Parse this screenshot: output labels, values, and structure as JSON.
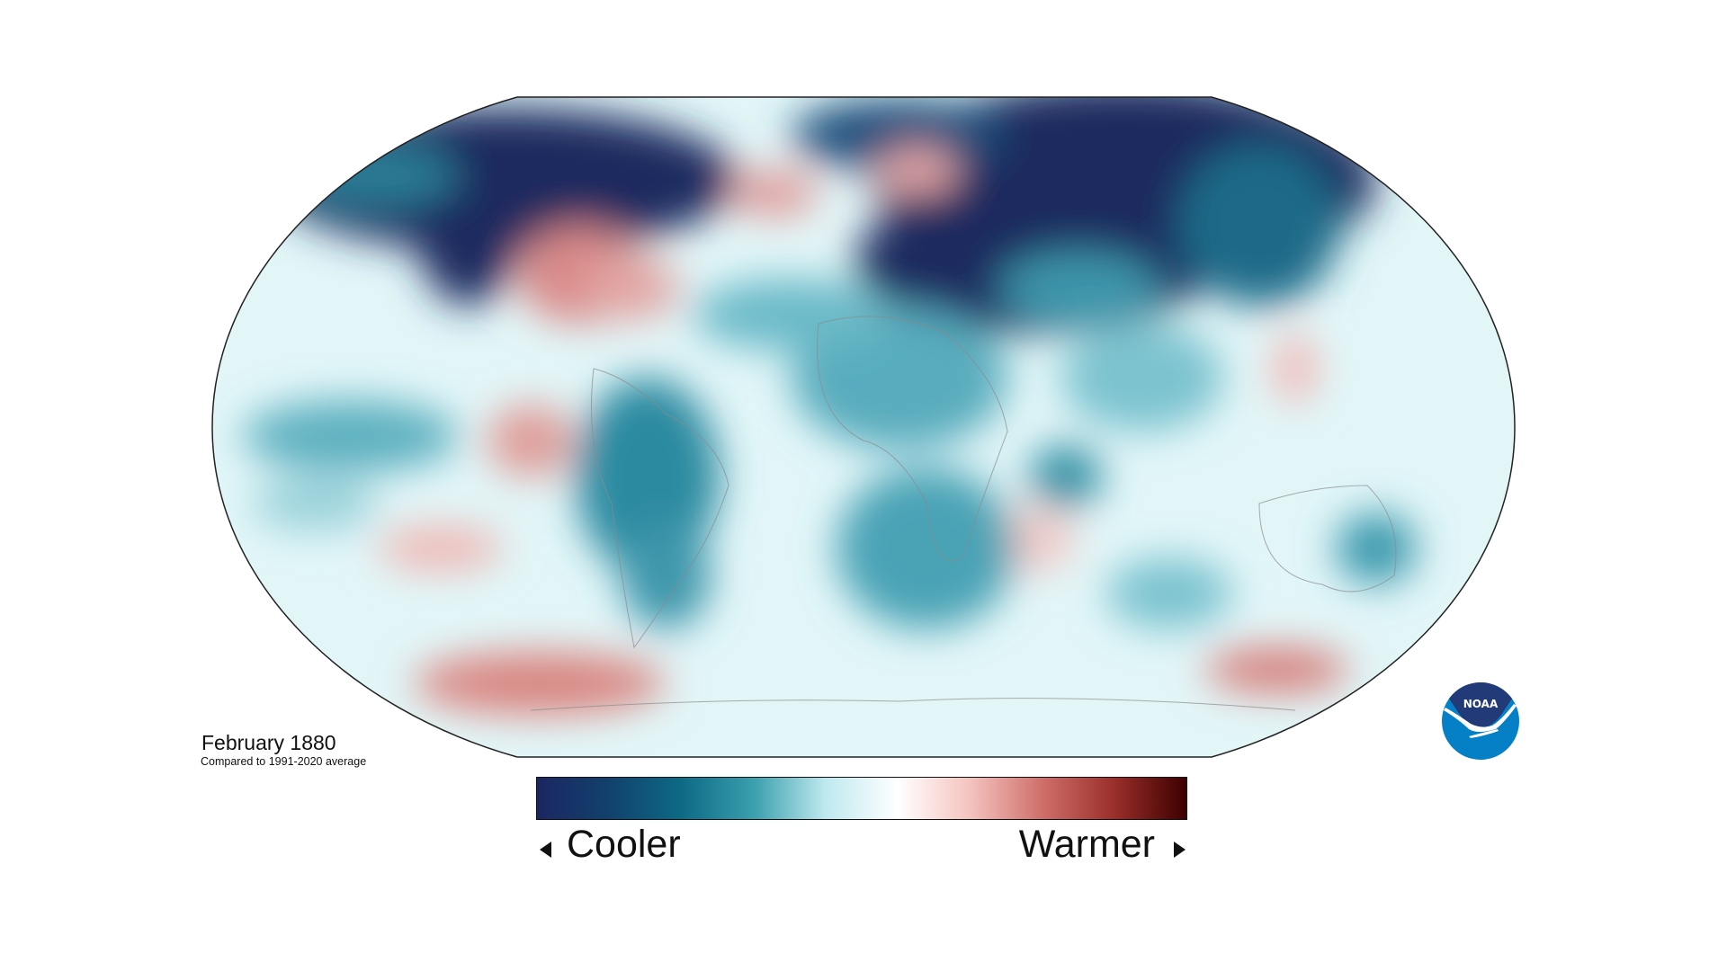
{
  "map": {
    "title": "February 1880",
    "subtitle": "Compared to 1991-2020 average",
    "projection": "Robinson",
    "colors": {
      "coolest": "#1b2a5e",
      "cool": "#1a7f96",
      "neutral": "#ffffff",
      "warm": "#d77a78",
      "warmest": "#3d0000"
    }
  },
  "legend": {
    "cooler_label": "Cooler",
    "warmer_label": "Warmer",
    "gradient": [
      "#1b2660",
      "#12416e",
      "#0d6a86",
      "#3a9fae",
      "#bfe9ef",
      "#ffffff",
      "#f4c3bf",
      "#cf6f6a",
      "#9a2e2a",
      "#3d0000"
    ]
  },
  "logo": {
    "text": "NOAA",
    "dark": "#233a78",
    "light": "#0580c6"
  }
}
